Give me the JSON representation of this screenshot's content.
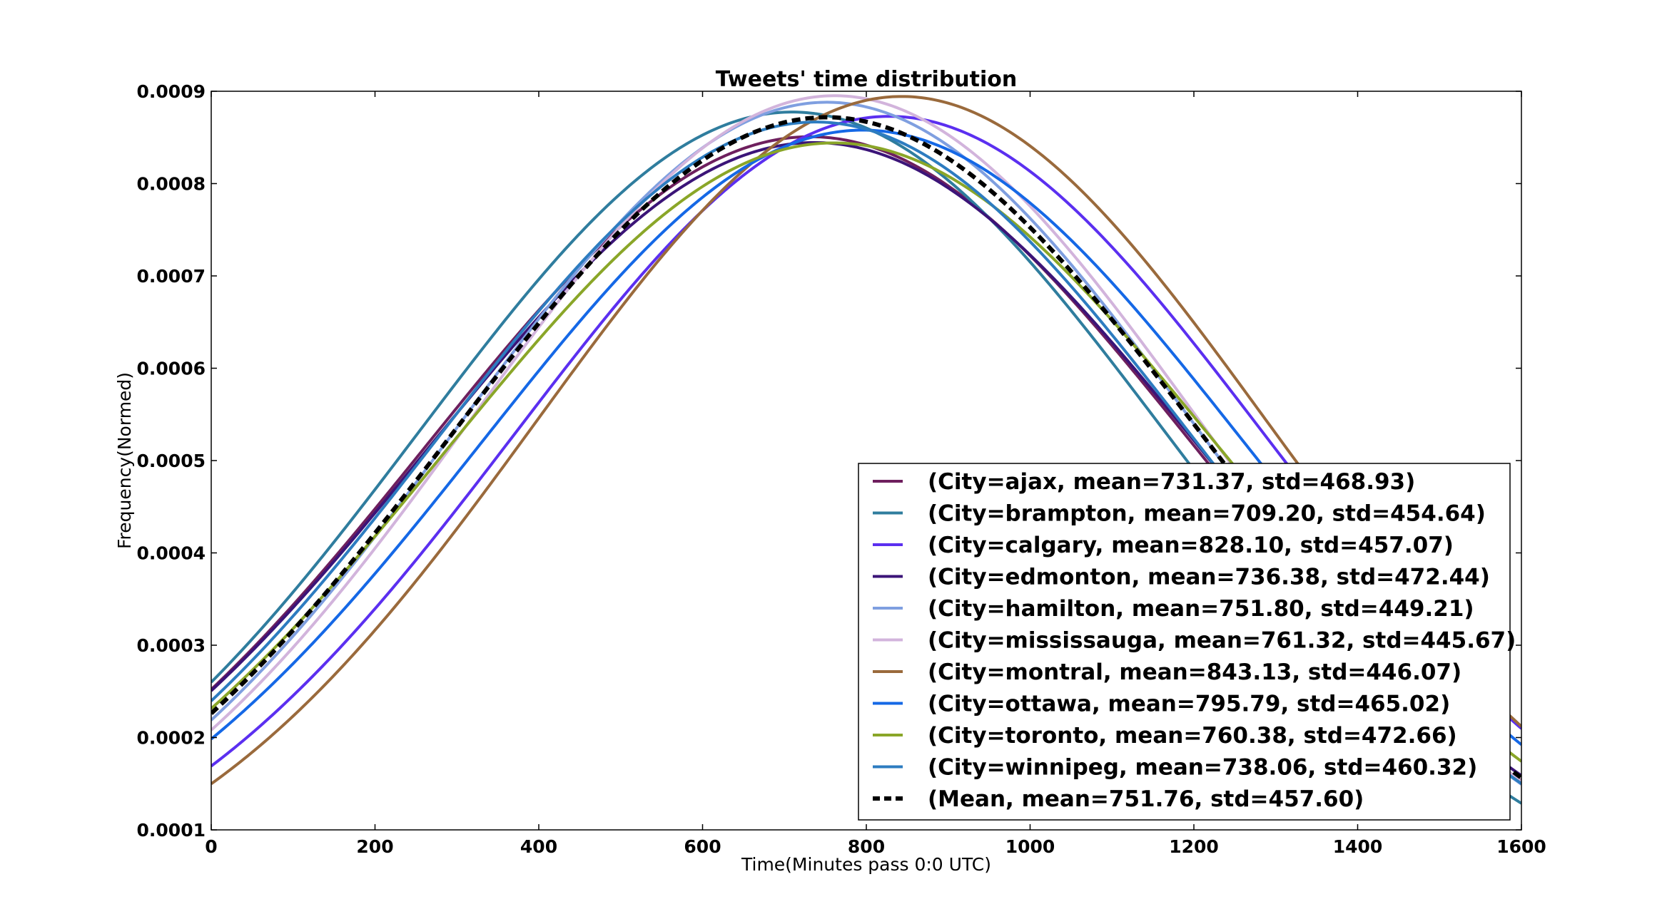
{
  "chart_data": {
    "type": "line",
    "title": "Tweets' time distribution",
    "xlabel": "Time(Minutes pass 0:0 UTC)",
    "ylabel": "Frequency(Normed)",
    "xlim": [
      0,
      1600
    ],
    "ylim": [
      0.0001,
      0.0009
    ],
    "x_ticks": [
      0,
      200,
      400,
      600,
      800,
      1000,
      1200,
      1400,
      1600
    ],
    "x_tick_labels": [
      "0",
      "200",
      "400",
      "600",
      "800",
      "1000",
      "1200",
      "1400",
      "1600"
    ],
    "y_ticks": [
      0.0001,
      0.0002,
      0.0003,
      0.0004,
      0.0005,
      0.0006,
      0.0007,
      0.0008,
      0.0009
    ],
    "y_tick_labels": [
      "0.0001",
      "0.0002",
      "0.0003",
      "0.0004",
      "0.0005",
      "0.0006",
      "0.0007",
      "0.0008",
      "0.0009"
    ],
    "grid": false,
    "legend_position": "lower-right",
    "curve": "normal probability density over x from 0 to 1600",
    "series": [
      {
        "name": "(City=ajax, mean=731.37, std=468.93)",
        "mean": 731.37,
        "std": 468.93,
        "color": "#6e1f5e",
        "dash": "solid"
      },
      {
        "name": "(City=brampton, mean=709.20, std=454.64)",
        "mean": 709.2,
        "std": 454.64,
        "color": "#2f7d9e",
        "dash": "solid"
      },
      {
        "name": "(City=calgary, mean=828.10, std=457.07)",
        "mean": 828.1,
        "std": 457.07,
        "color": "#5b2ff0",
        "dash": "solid"
      },
      {
        "name": "(City=edmonton, mean=736.38, std=472.44)",
        "mean": 736.38,
        "std": 472.44,
        "color": "#3b1478",
        "dash": "solid"
      },
      {
        "name": "(City=hamilton, mean=751.80, std=449.21)",
        "mean": 751.8,
        "std": 449.21,
        "color": "#7f9fe0",
        "dash": "solid"
      },
      {
        "name": "(City=mississauga, mean=761.32, std=445.67)",
        "mean": 761.32,
        "std": 445.67,
        "color": "#d2b4dc",
        "dash": "solid"
      },
      {
        "name": "(City=montral, mean=843.13, std=446.07)",
        "mean": 843.13,
        "std": 446.07,
        "color": "#9a6a3c",
        "dash": "solid"
      },
      {
        "name": "(City=ottawa, mean=795.79, std=465.02)",
        "mean": 795.79,
        "std": 465.02,
        "color": "#1568e6",
        "dash": "solid"
      },
      {
        "name": "(City=toronto, mean=760.38, std=472.66)",
        "mean": 760.38,
        "std": 472.66,
        "color": "#8aa628",
        "dash": "solid"
      },
      {
        "name": "(City=winnipeg, mean=738.06, std=460.32)",
        "mean": 738.06,
        "std": 460.32,
        "color": "#2d7cc0",
        "dash": "solid"
      },
      {
        "name": "(Mean, mean=751.76, std=457.60)",
        "mean": 751.76,
        "std": 457.6,
        "color": "#000000",
        "dash": "dashed"
      }
    ]
  }
}
